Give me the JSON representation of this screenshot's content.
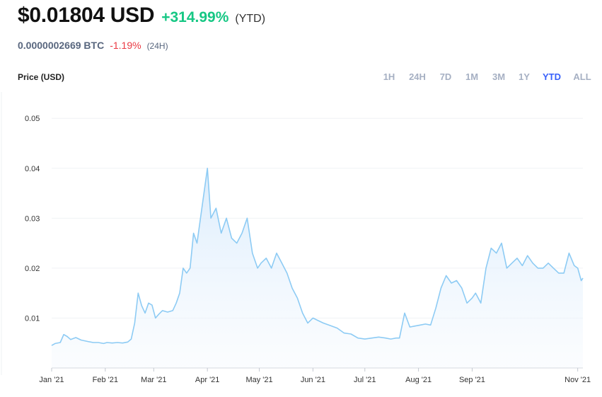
{
  "header": {
    "price": "$0.01804 USD",
    "change": "+314.99%",
    "change_period": "(YTD)",
    "btc_price": "0.0000002669 BTC",
    "btc_change": "-1.19%",
    "btc_period": "(24H)"
  },
  "chart_label": "Price (USD)",
  "range_tabs": [
    "1H",
    "24H",
    "7D",
    "1M",
    "3M",
    "1Y",
    "YTD",
    "ALL"
  ],
  "active_range": "YTD",
  "colors": {
    "positive": "#16c784",
    "negative": "#ea3943",
    "line": "#8dcbf4",
    "active_tab": "#3861fb"
  },
  "chart_data": {
    "type": "area",
    "title": "",
    "xlabel": "",
    "ylabel": "Price (USD)",
    "ylim": [
      0,
      0.05
    ],
    "y_ticks": [
      "0.05",
      "0.04",
      "0.03",
      "0.02",
      "0.01"
    ],
    "x_ticks": [
      "Jan '21",
      "Feb '21",
      "Mar '21",
      "Apr '21",
      "May '21",
      "Jun '21",
      "Jul '21",
      "Aug '21",
      "Sep '21",
      "Nov '21"
    ],
    "grid": true,
    "series": [
      {
        "x": [
          "2021-01-01",
          "2021-01-03",
          "2021-01-06",
          "2021-01-08",
          "2021-01-10",
          "2021-01-12",
          "2021-01-15",
          "2021-01-18",
          "2021-01-22",
          "2021-01-25",
          "2021-01-28",
          "2021-01-31",
          "2021-02-02",
          "2021-02-05",
          "2021-02-08",
          "2021-02-11",
          "2021-02-14",
          "2021-02-16",
          "2021-02-18",
          "2021-02-20",
          "2021-02-22",
          "2021-02-24",
          "2021-02-26",
          "2021-02-28",
          "2021-03-02",
          "2021-03-04",
          "2021-03-06",
          "2021-03-09",
          "2021-03-12",
          "2021-03-14",
          "2021-03-16",
          "2021-03-18",
          "2021-03-20",
          "2021-03-22",
          "2021-03-24",
          "2021-03-26",
          "2021-03-28",
          "2021-03-30",
          "2021-04-01",
          "2021-04-03",
          "2021-04-06",
          "2021-04-09",
          "2021-04-12",
          "2021-04-15",
          "2021-04-18",
          "2021-04-21",
          "2021-04-24",
          "2021-04-27",
          "2021-04-30",
          "2021-05-02",
          "2021-05-05",
          "2021-05-08",
          "2021-05-11",
          "2021-05-14",
          "2021-05-17",
          "2021-05-20",
          "2021-05-23",
          "2021-05-26",
          "2021-05-29",
          "2021-06-01",
          "2021-06-04",
          "2021-06-07",
          "2021-06-11",
          "2021-06-15",
          "2021-06-19",
          "2021-06-23",
          "2021-06-27",
          "2021-07-01",
          "2021-07-05",
          "2021-07-09",
          "2021-07-13",
          "2021-07-16",
          "2021-07-19",
          "2021-07-21",
          "2021-07-24",
          "2021-07-27",
          "2021-07-30",
          "2021-08-02",
          "2021-08-05",
          "2021-08-08",
          "2021-08-11",
          "2021-08-14",
          "2021-08-17",
          "2021-08-20",
          "2021-08-23",
          "2021-08-26",
          "2021-08-29",
          "2021-09-01",
          "2021-09-03",
          "2021-09-06",
          "2021-09-09",
          "2021-09-12",
          "2021-09-15",
          "2021-09-18",
          "2021-09-21",
          "2021-09-24",
          "2021-09-27",
          "2021-09-30",
          "2021-10-03",
          "2021-10-06",
          "2021-10-09",
          "2021-10-12",
          "2021-10-15",
          "2021-10-18",
          "2021-10-21",
          "2021-10-24",
          "2021-10-27",
          "2021-10-30",
          "2021-11-01",
          "2021-11-03",
          "2021-11-04"
        ],
        "values": [
          0.0045,
          0.0049,
          0.0051,
          0.0067,
          0.0063,
          0.0057,
          0.0061,
          0.0056,
          0.0053,
          0.0051,
          0.0051,
          0.0049,
          0.0051,
          0.005,
          0.0051,
          0.005,
          0.0052,
          0.0058,
          0.009,
          0.015,
          0.0125,
          0.011,
          0.013,
          0.0126,
          0.01,
          0.0108,
          0.0115,
          0.0112,
          0.0115,
          0.013,
          0.015,
          0.02,
          0.019,
          0.02,
          0.027,
          0.025,
          0.03,
          0.035,
          0.04,
          0.03,
          0.032,
          0.027,
          0.03,
          0.026,
          0.025,
          0.027,
          0.03,
          0.023,
          0.02,
          0.021,
          0.022,
          0.02,
          0.023,
          0.021,
          0.019,
          0.016,
          0.014,
          0.011,
          0.009,
          0.01,
          0.0095,
          0.009,
          0.0085,
          0.008,
          0.007,
          0.0068,
          0.006,
          0.0058,
          0.006,
          0.0062,
          0.006,
          0.0058,
          0.006,
          0.006,
          0.011,
          0.0082,
          0.0084,
          0.0086,
          0.0088,
          0.0086,
          0.012,
          0.016,
          0.0185,
          0.017,
          0.0175,
          0.016,
          0.013,
          0.014,
          0.015,
          0.013,
          0.02,
          0.024,
          0.023,
          0.025,
          0.02,
          0.021,
          0.022,
          0.0205,
          0.0225,
          0.021,
          0.02,
          0.02,
          0.021,
          0.02,
          0.019,
          0.019,
          0.023,
          0.0205,
          0.02,
          0.0175,
          0.018
        ]
      }
    ]
  }
}
